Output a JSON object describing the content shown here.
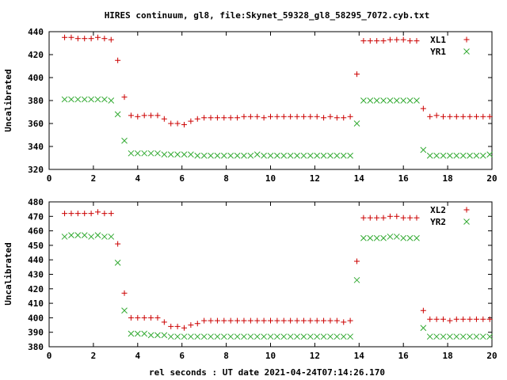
{
  "figure": {
    "title": "HIRES continuum, gl8, file:Skynet_59328_gl8_58295_7072.cyb.txt",
    "xlabel": "rel seconds : UT date 2021-04-24T07:14:26.170"
  },
  "chart_data": [
    {
      "type": "scatter",
      "ylabel": "Uncalibrated",
      "xlim": [
        0,
        20
      ],
      "ylim": [
        320,
        440
      ],
      "x_ticks": [
        "0",
        "2",
        "4",
        "6",
        "8",
        "10",
        "12",
        "14",
        "16",
        "18",
        "20"
      ],
      "y_ticks": [
        "320",
        "340",
        "360",
        "380",
        "400",
        "420",
        "440"
      ],
      "legend_position": "top-right",
      "series": [
        {
          "name": "XL1",
          "marker": "plus",
          "color": "#cc0000",
          "x": [
            0.7,
            1.0,
            1.3,
            1.6,
            1.9,
            2.2,
            2.5,
            2.8,
            3.1,
            3.4,
            3.7,
            4.0,
            4.3,
            4.6,
            4.9,
            5.2,
            5.5,
            5.8,
            6.1,
            6.4,
            6.7,
            7.0,
            7.3,
            7.6,
            7.9,
            8.2,
            8.5,
            8.8,
            9.1,
            9.4,
            9.7,
            10.0,
            10.3,
            10.6,
            10.9,
            11.2,
            11.5,
            11.8,
            12.1,
            12.4,
            12.7,
            13.0,
            13.3,
            13.6,
            13.9,
            14.2,
            14.5,
            14.8,
            15.1,
            15.4,
            15.7,
            16.0,
            16.3,
            16.6,
            16.9,
            17.2,
            17.5,
            17.8,
            18.1,
            18.4,
            18.7,
            19.0,
            19.3,
            19.6,
            19.9
          ],
          "y": [
            435,
            435,
            434,
            434,
            434,
            435,
            434,
            433,
            415,
            383,
            367,
            366,
            367,
            367,
            367,
            364,
            360,
            360,
            359,
            362,
            364,
            365,
            365,
            365,
            365,
            365,
            365,
            366,
            366,
            366,
            365,
            366,
            366,
            366,
            366,
            366,
            366,
            366,
            366,
            365,
            366,
            365,
            365,
            366,
            403,
            432,
            432,
            432,
            432,
            433,
            433,
            433,
            432,
            432,
            373,
            366,
            367,
            366,
            366,
            366,
            366,
            366,
            366,
            366,
            366
          ]
        },
        {
          "name": "YR1",
          "marker": "cross",
          "color": "#33aa33",
          "x": [
            0.7,
            1.0,
            1.3,
            1.6,
            1.9,
            2.2,
            2.5,
            2.8,
            3.1,
            3.4,
            3.7,
            4.0,
            4.3,
            4.6,
            4.9,
            5.2,
            5.5,
            5.8,
            6.1,
            6.4,
            6.7,
            7.0,
            7.3,
            7.6,
            7.9,
            8.2,
            8.5,
            8.8,
            9.1,
            9.4,
            9.7,
            10.0,
            10.3,
            10.6,
            10.9,
            11.2,
            11.5,
            11.8,
            12.1,
            12.4,
            12.7,
            13.0,
            13.3,
            13.6,
            13.9,
            14.2,
            14.5,
            14.8,
            15.1,
            15.4,
            15.7,
            16.0,
            16.3,
            16.6,
            16.9,
            17.2,
            17.5,
            17.8,
            18.1,
            18.4,
            18.7,
            19.0,
            19.3,
            19.6,
            19.9
          ],
          "y": [
            381,
            381,
            381,
            381,
            381,
            381,
            381,
            380,
            368,
            345,
            334,
            334,
            334,
            334,
            334,
            333,
            333,
            333,
            333,
            333,
            332,
            332,
            332,
            332,
            332,
            332,
            332,
            332,
            332,
            333,
            332,
            332,
            332,
            332,
            332,
            332,
            332,
            332,
            332,
            332,
            332,
            332,
            332,
            332,
            360,
            380,
            380,
            380,
            380,
            380,
            380,
            380,
            380,
            380,
            337,
            332,
            332,
            332,
            332,
            332,
            332,
            332,
            332,
            332,
            333
          ]
        }
      ]
    },
    {
      "type": "scatter",
      "ylabel": "Uncalibrated",
      "xlim": [
        0,
        20
      ],
      "ylim": [
        380,
        480
      ],
      "x_ticks": [
        "0",
        "2",
        "4",
        "6",
        "8",
        "10",
        "12",
        "14",
        "16",
        "18",
        "20"
      ],
      "y_ticks": [
        "380",
        "390",
        "400",
        "410",
        "420",
        "430",
        "440",
        "450",
        "460",
        "470",
        "480"
      ],
      "legend_position": "top-right",
      "series": [
        {
          "name": "XL2",
          "marker": "plus",
          "color": "#cc0000",
          "x": [
            0.7,
            1.0,
            1.3,
            1.6,
            1.9,
            2.2,
            2.5,
            2.8,
            3.1,
            3.4,
            3.7,
            4.0,
            4.3,
            4.6,
            4.9,
            5.2,
            5.5,
            5.8,
            6.1,
            6.4,
            6.7,
            7.0,
            7.3,
            7.6,
            7.9,
            8.2,
            8.5,
            8.8,
            9.1,
            9.4,
            9.7,
            10.0,
            10.3,
            10.6,
            10.9,
            11.2,
            11.5,
            11.8,
            12.1,
            12.4,
            12.7,
            13.0,
            13.3,
            13.6,
            13.9,
            14.2,
            14.5,
            14.8,
            15.1,
            15.4,
            15.7,
            16.0,
            16.3,
            16.6,
            16.9,
            17.2,
            17.5,
            17.8,
            18.1,
            18.4,
            18.7,
            19.0,
            19.3,
            19.6,
            19.9
          ],
          "y": [
            472,
            472,
            472,
            472,
            472,
            473,
            472,
            472,
            451,
            417,
            400,
            400,
            400,
            400,
            400,
            397,
            394,
            394,
            393,
            395,
            396,
            398,
            398,
            398,
            398,
            398,
            398,
            398,
            398,
            398,
            398,
            398,
            398,
            398,
            398,
            398,
            398,
            398,
            398,
            398,
            398,
            398,
            397,
            398,
            439,
            469,
            469,
            469,
            469,
            470,
            470,
            469,
            469,
            469,
            405,
            399,
            399,
            399,
            398,
            399,
            399,
            399,
            399,
            399,
            399
          ]
        },
        {
          "name": "YR2",
          "marker": "cross",
          "color": "#33aa33",
          "x": [
            0.7,
            1.0,
            1.3,
            1.6,
            1.9,
            2.2,
            2.5,
            2.8,
            3.1,
            3.4,
            3.7,
            4.0,
            4.3,
            4.6,
            4.9,
            5.2,
            5.5,
            5.8,
            6.1,
            6.4,
            6.7,
            7.0,
            7.3,
            7.6,
            7.9,
            8.2,
            8.5,
            8.8,
            9.1,
            9.4,
            9.7,
            10.0,
            10.3,
            10.6,
            10.9,
            11.2,
            11.5,
            11.8,
            12.1,
            12.4,
            12.7,
            13.0,
            13.3,
            13.6,
            13.9,
            14.2,
            14.5,
            14.8,
            15.1,
            15.4,
            15.7,
            16.0,
            16.3,
            16.6,
            16.9,
            17.2,
            17.5,
            17.8,
            18.1,
            18.4,
            18.7,
            19.0,
            19.3,
            19.6,
            19.9
          ],
          "y": [
            456,
            457,
            457,
            457,
            456,
            457,
            456,
            456,
            438,
            405,
            389,
            389,
            389,
            388,
            388,
            388,
            387,
            387,
            387,
            387,
            387,
            387,
            387,
            387,
            387,
            387,
            387,
            387,
            387,
            387,
            387,
            387,
            387,
            387,
            387,
            387,
            387,
            387,
            387,
            387,
            387,
            387,
            387,
            387,
            426,
            455,
            455,
            455,
            455,
            456,
            456,
            455,
            455,
            455,
            393,
            387,
            387,
            387,
            387,
            387,
            387,
            387,
            387,
            387,
            387
          ]
        }
      ]
    }
  ]
}
